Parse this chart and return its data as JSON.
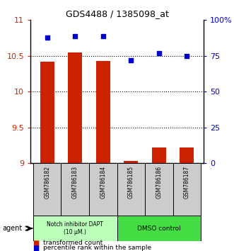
{
  "title": "GDS4488 / 1385098_at",
  "categories": [
    "GSM786182",
    "GSM786183",
    "GSM786184",
    "GSM786185",
    "GSM786186",
    "GSM786187"
  ],
  "bar_values": [
    10.42,
    10.55,
    10.43,
    9.03,
    9.22,
    9.22
  ],
  "dot_values": [
    88,
    89,
    89,
    72,
    77,
    75
  ],
  "ylim_left": [
    9,
    11
  ],
  "ylim_right": [
    0,
    100
  ],
  "yticks_left": [
    9,
    9.5,
    10,
    10.5,
    11
  ],
  "ytick_labels_left": [
    "9",
    "9.5",
    "10",
    "10.5",
    "11"
  ],
  "yticks_right": [
    0,
    25,
    50,
    75,
    100
  ],
  "ytick_labels_right": [
    "0",
    "25",
    "50",
    "75",
    "100%"
  ],
  "bar_color": "#cc2200",
  "dot_color": "#0000cc",
  "bar_width": 0.5,
  "group1_label": "Notch inhibitor DAPT\n(10 μM.)",
  "group2_label": "DMSO control",
  "group1_color": "#bbffbb",
  "group2_color": "#44dd44",
  "group1_indices": [
    0,
    1,
    2
  ],
  "group2_indices": [
    3,
    4,
    5
  ],
  "agent_label": "agent",
  "legend_bar_label": "transformed count",
  "legend_dot_label": "percentile rank within the sample",
  "background_color": "#ffffff"
}
